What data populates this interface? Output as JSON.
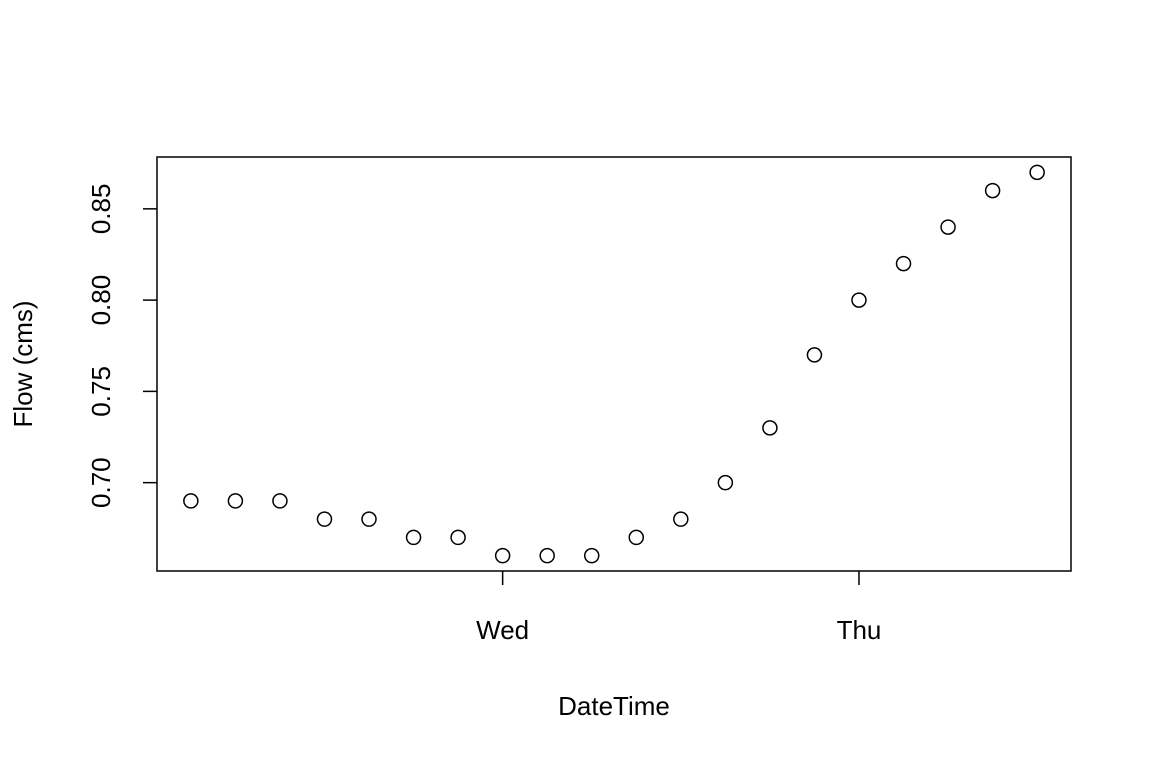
{
  "chart_data": {
    "type": "scatter",
    "x_label": "DateTime",
    "y_label": "Flow (cms)",
    "x": [
      3,
      6,
      9,
      12,
      15,
      18,
      21,
      24,
      27,
      30,
      33,
      36,
      39,
      42,
      45,
      48,
      51,
      54,
      57,
      60
    ],
    "values": [
      0.69,
      0.69,
      0.69,
      0.68,
      0.68,
      0.67,
      0.67,
      0.66,
      0.66,
      0.66,
      0.67,
      0.68,
      0.7,
      0.73,
      0.77,
      0.8,
      0.82,
      0.84,
      0.86,
      0.87
    ],
    "color": "#000000",
    "xlim": [
      0.72,
      62.28
    ],
    "xticks": [
      {
        "value": 24,
        "label": "Wed"
      },
      {
        "value": 48,
        "label": "Thu"
      }
    ],
    "ylim": [
      0.6516,
      0.8784
    ],
    "yticks": [
      {
        "value": 0.7,
        "label": "0.70"
      },
      0.75,
      {
        "value": 0.8,
        "label": "0.80"
      },
      0.85
    ],
    "grid": false
  }
}
